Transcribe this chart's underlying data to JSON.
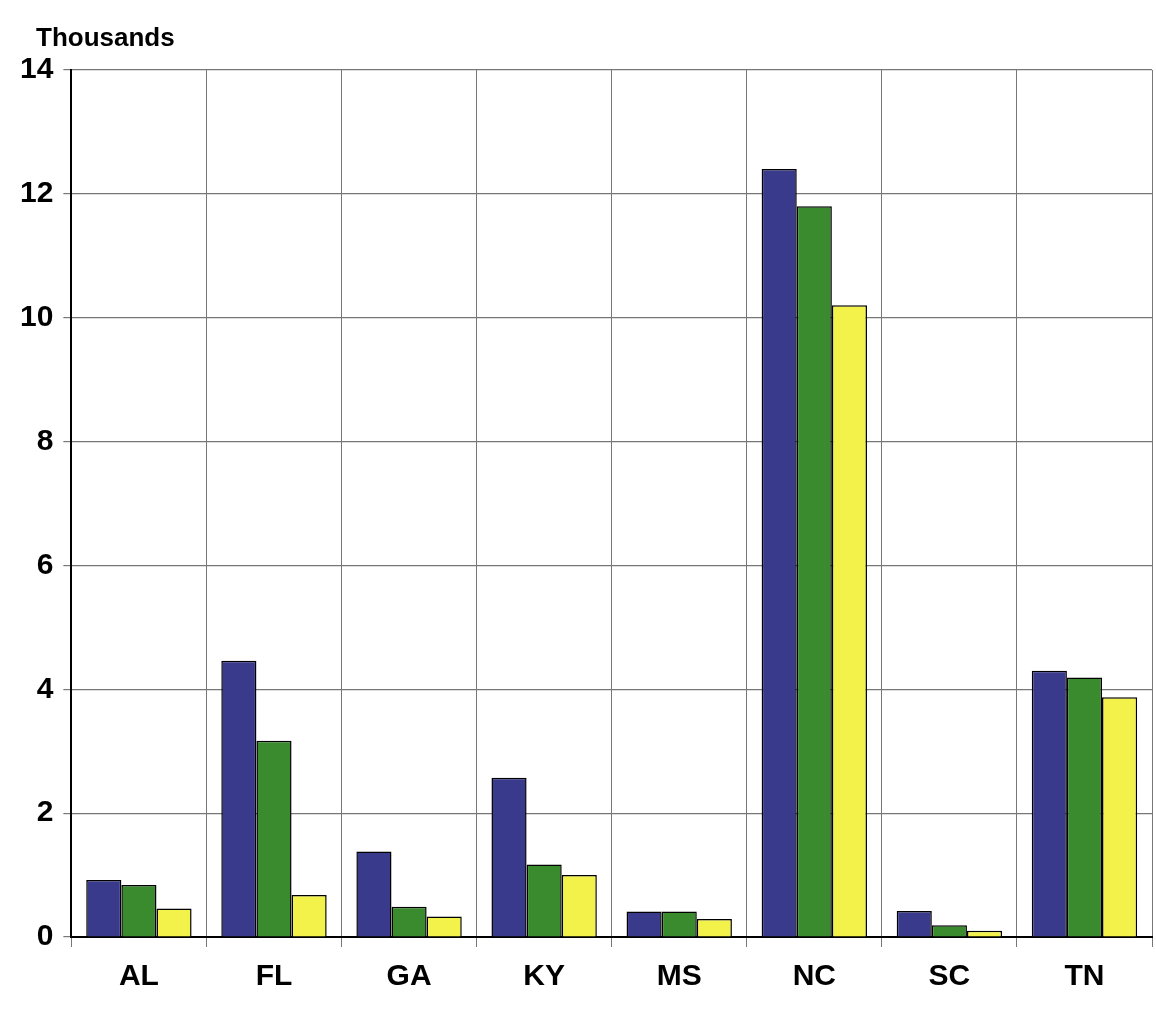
{
  "chart_data": {
    "type": "bar",
    "ylabel": "Thousands",
    "categories": [
      "AL",
      "FL",
      "GA",
      "KY",
      "MS",
      "NC",
      "SC",
      "TN"
    ],
    "series": [
      {
        "color": "#3a3a8c",
        "values": [
          0.92,
          4.46,
          1.38,
          2.57,
          0.41,
          12.4,
          0.42,
          4.3
        ]
      },
      {
        "color": "#3a8a2e",
        "values": [
          0.84,
          3.17,
          0.49,
          1.17,
          0.41,
          11.8,
          0.19,
          4.19
        ]
      },
      {
        "color": "#f2f24a",
        "values": [
          0.46,
          0.68,
          0.33,
          1.0,
          0.29,
          10.2,
          0.1,
          3.87
        ]
      }
    ],
    "ylim": [
      0,
      14
    ],
    "yticks": [
      0,
      2,
      4,
      6,
      8,
      10,
      12,
      14
    ],
    "grid": true
  }
}
